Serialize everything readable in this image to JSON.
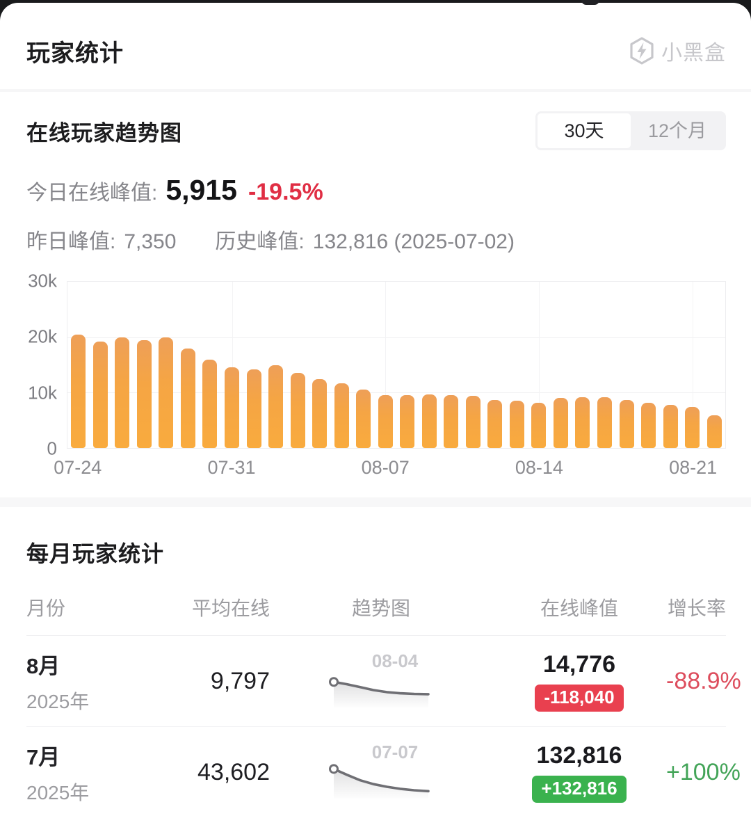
{
  "header": {
    "title": "玩家统计",
    "brand": "小黑盒"
  },
  "trend": {
    "title": "在线玩家趋势图",
    "toggle_options": [
      {
        "label": "30天",
        "active": true
      },
      {
        "label": "12个月",
        "active": false
      }
    ],
    "today_label": "今日在线峰值:",
    "today_value": "5,915",
    "today_change": "-19.5%",
    "yesterday_label": "昨日峰值:",
    "yesterday_value": "7,350",
    "history_label": "历史峰值:",
    "history_value": "132,816 (2025-07-02)"
  },
  "chart_data": [
    {
      "type": "bar",
      "title": "在线玩家趋势图",
      "xlabel": "",
      "ylabel": "在线峰值",
      "ylim": [
        0,
        30000
      ],
      "grid": true,
      "legend": "none",
      "y_ticks": [
        "30k",
        "20k",
        "10k",
        "0"
      ],
      "x": [
        "07-24",
        "07-25",
        "07-26",
        "07-27",
        "07-28",
        "07-29",
        "07-30",
        "07-31",
        "08-01",
        "08-02",
        "08-03",
        "08-04",
        "08-05",
        "08-06",
        "08-07",
        "08-08",
        "08-09",
        "08-10",
        "08-11",
        "08-12",
        "08-13",
        "08-14",
        "08-15",
        "08-16",
        "08-17",
        "08-18",
        "08-19",
        "08-20",
        "08-21",
        "08-22"
      ],
      "values": [
        20500,
        19200,
        19900,
        19500,
        19900,
        17900,
        15900,
        14500,
        14200,
        14900,
        13600,
        12400,
        11700,
        10600,
        9600,
        9500,
        9700,
        9500,
        9400,
        8700,
        8500,
        8100,
        9100,
        9200,
        9200,
        8700,
        8200,
        7800,
        7350,
        5915
      ],
      "x_tick_labels": [
        "07-24",
        "07-31",
        "08-07",
        "08-14",
        "08-21"
      ],
      "x_tick_indices": [
        0,
        7,
        14,
        21,
        28
      ]
    },
    {
      "type": "line",
      "name": "8月趋势图",
      "label": "08-04",
      "points_pct": [
        [
          0,
          22
        ],
        [
          14,
          30
        ],
        [
          28,
          40
        ],
        [
          42,
          50
        ],
        [
          56,
          57
        ],
        [
          70,
          61
        ],
        [
          85,
          63
        ],
        [
          100,
          64
        ]
      ]
    },
    {
      "type": "line",
      "name": "7月趋势图",
      "label": "07-07",
      "points_pct": [
        [
          0,
          8
        ],
        [
          14,
          28
        ],
        [
          28,
          47
        ],
        [
          42,
          60
        ],
        [
          56,
          69
        ],
        [
          70,
          76
        ],
        [
          85,
          81
        ],
        [
          100,
          84
        ]
      ]
    }
  ],
  "monthly": {
    "title": "每月玩家统计",
    "columns": [
      "月份",
      "平均在线",
      "趋势图",
      "在线峰值",
      "增长率"
    ],
    "rows": [
      {
        "month": "8月",
        "year": "2025年",
        "avg": "9,797",
        "peak": "14,776",
        "delta": "-118,040",
        "delta_type": "negative",
        "growth": "-88.9%",
        "growth_type": "negative"
      },
      {
        "month": "7月",
        "year": "2025年",
        "avg": "43,602",
        "peak": "132,816",
        "delta": "+132,816",
        "delta_type": "positive",
        "growth": "+100%",
        "growth_type": "positive"
      }
    ]
  },
  "colors": {
    "bar_top": "#ee9f58",
    "bar_bottom": "#f9ab3e",
    "negative_red": "#e02e44",
    "positive_green": "#3ab24e",
    "badge_red_bg": "#e9404f",
    "badge_green_bg": "#3ab24e",
    "spark_line": "#6f6f74",
    "muted_text": "#86868b",
    "brand_gray": "#c7c7cb"
  }
}
